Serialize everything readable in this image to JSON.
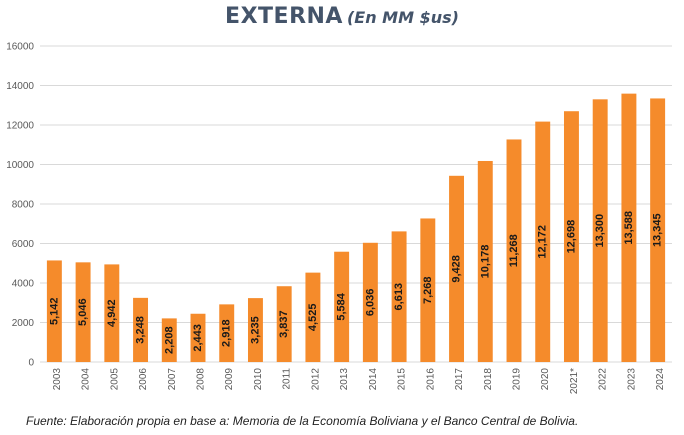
{
  "title": {
    "main": "EXTERNA",
    "sub": "(En MM $us)"
  },
  "source_note": "Fuente: Elaboración propia en base a: Memoria de la Economía Boliviana y el Banco Central de Bolivia.",
  "colors": {
    "bar": "#f58b2b",
    "grid": "#d9d9d9",
    "axis_text": "#595959",
    "label_text": "#1a1a1a"
  },
  "chart_data": {
    "type": "bar",
    "title": "EXTERNA (En MM $us)",
    "xlabel": "",
    "ylabel": "",
    "ylim": [
      0,
      16000
    ],
    "yticks": [
      0,
      2000,
      4000,
      6000,
      8000,
      10000,
      12000,
      14000,
      16000
    ],
    "grid": true,
    "legend": "none",
    "categories": [
      "2003",
      "2004",
      "2005",
      "2006",
      "2007",
      "2008",
      "2009",
      "2010",
      "2011",
      "2012",
      "2013",
      "2014",
      "2015",
      "2016",
      "2017",
      "2018",
      "2019",
      "2020",
      "2021*",
      "2022",
      "2023",
      "2024"
    ],
    "values": [
      5142,
      5046,
      4942,
      3248,
      2208,
      2443,
      2918,
      3235,
      3837,
      4525,
      5584,
      6036,
      6613,
      7268,
      9428,
      10178,
      11268,
      12172,
      12698,
      13300,
      13588,
      13345
    ],
    "data_labels": [
      "5,142",
      "5,046",
      "4,942",
      "3,248",
      "2,208",
      "2,443",
      "2,918",
      "3,235",
      "3,837",
      "4,525",
      "5,584",
      "6,036",
      "6,613",
      "7,268",
      "9,428",
      "10,178",
      "11,268",
      "12,172",
      "12,698",
      "13,300",
      "13,588",
      "13,345"
    ]
  }
}
